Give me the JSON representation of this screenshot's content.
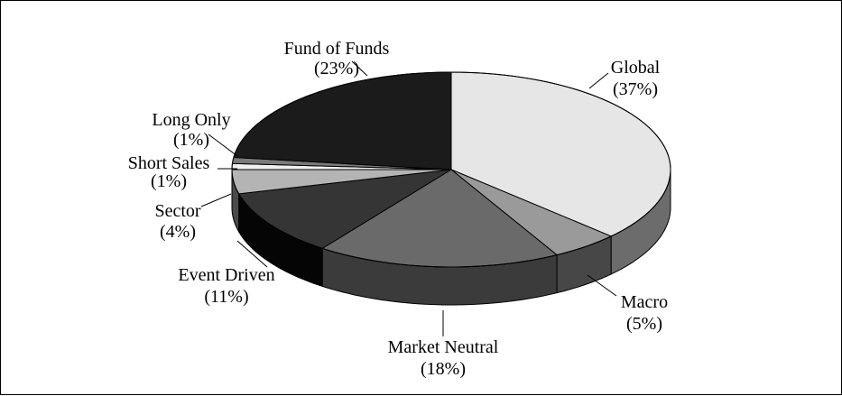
{
  "chart_data": {
    "type": "pie",
    "style": "3d",
    "title": "",
    "slices": [
      {
        "name": "Global",
        "value": 37,
        "label_pct": "(37%)",
        "top_color": "#e6e6e6",
        "side_color": "#6c6c6c"
      },
      {
        "name": "Macro",
        "value": 5,
        "label_pct": "(5%)",
        "top_color": "#9a9a9a",
        "side_color": "#474747"
      },
      {
        "name": "Market Neutral",
        "value": 18,
        "label_pct": "(18%)",
        "top_color": "#6a6a6a",
        "side_color": "#3b3b3b"
      },
      {
        "name": "Event Driven",
        "value": 11,
        "label_pct": "(11%)",
        "top_color": "#353535",
        "side_color": "#050505"
      },
      {
        "name": "Sector",
        "value": 4,
        "label_pct": "(4%)",
        "top_color": "#b4b4b4",
        "side_color": "#4a4a4a"
      },
      {
        "name": "Short Sales",
        "value": 1,
        "label_pct": "(1%)",
        "top_color": "#f0f0f0",
        "side_color": "#6a6a6a"
      },
      {
        "name": "Long Only",
        "value": 1,
        "label_pct": "(1%)",
        "top_color": "#7a7a7a",
        "side_color": "#3a3a3a"
      },
      {
        "name": "Fund of Funds",
        "value": 23,
        "label_pct": "(23%)",
        "top_color": "#1b1b1b",
        "side_color": "#0a0a0a"
      }
    ],
    "legend": "none",
    "grid": false
  }
}
